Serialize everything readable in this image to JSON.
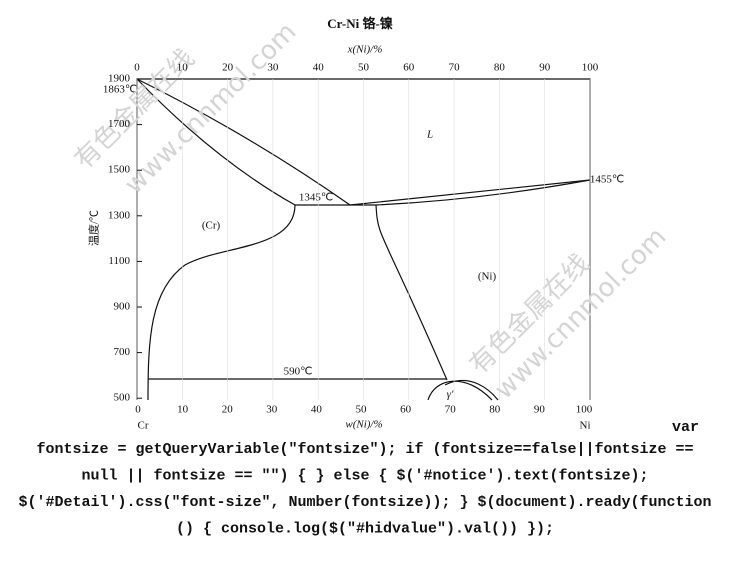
{
  "figure": {
    "title": "Cr-Ni  铬-镍",
    "top_axis_label": "x(Ni)/%",
    "bottom_axis_label": "w(Ni)/%",
    "y_axis_label": "温度/℃",
    "top_ticks": [
      0,
      10,
      20,
      30,
      40,
      50,
      60,
      70,
      80,
      90,
      100
    ],
    "bottom_ticks": [
      0,
      10,
      20,
      30,
      40,
      50,
      60,
      70,
      80,
      90,
      100
    ],
    "y_ticks": [
      1900,
      1700,
      1500,
      1300,
      1100,
      900,
      700,
      500
    ],
    "left_end": "Cr",
    "right_end": "Ni",
    "annotations": {
      "cr_melt": "1863℃",
      "ni_melt": "1455℃",
      "eutectic": "1345℃",
      "ordering": "590℃",
      "liquid": "L",
      "cr_phase": "(Cr)",
      "ni_phase": "(Ni)",
      "gamma_prime": "γ'"
    },
    "watermarks": [
      "有色金属在线",
      "www.cnnmol.com"
    ]
  },
  "code": {
    "first": "var",
    "lines": [
      "fontsize = getQueryVariable(\"fontsize\"); if (fontsize==false||fontsize ==",
      "null || fontsize == \"\") { } else { $('#notice').text(fontsize);",
      "$('#Detail').css(\"font-size\", Number(fontsize)); } $(document).ready(function",
      "() { console.log($(\"#hidvalue\").val()) });"
    ]
  }
}
